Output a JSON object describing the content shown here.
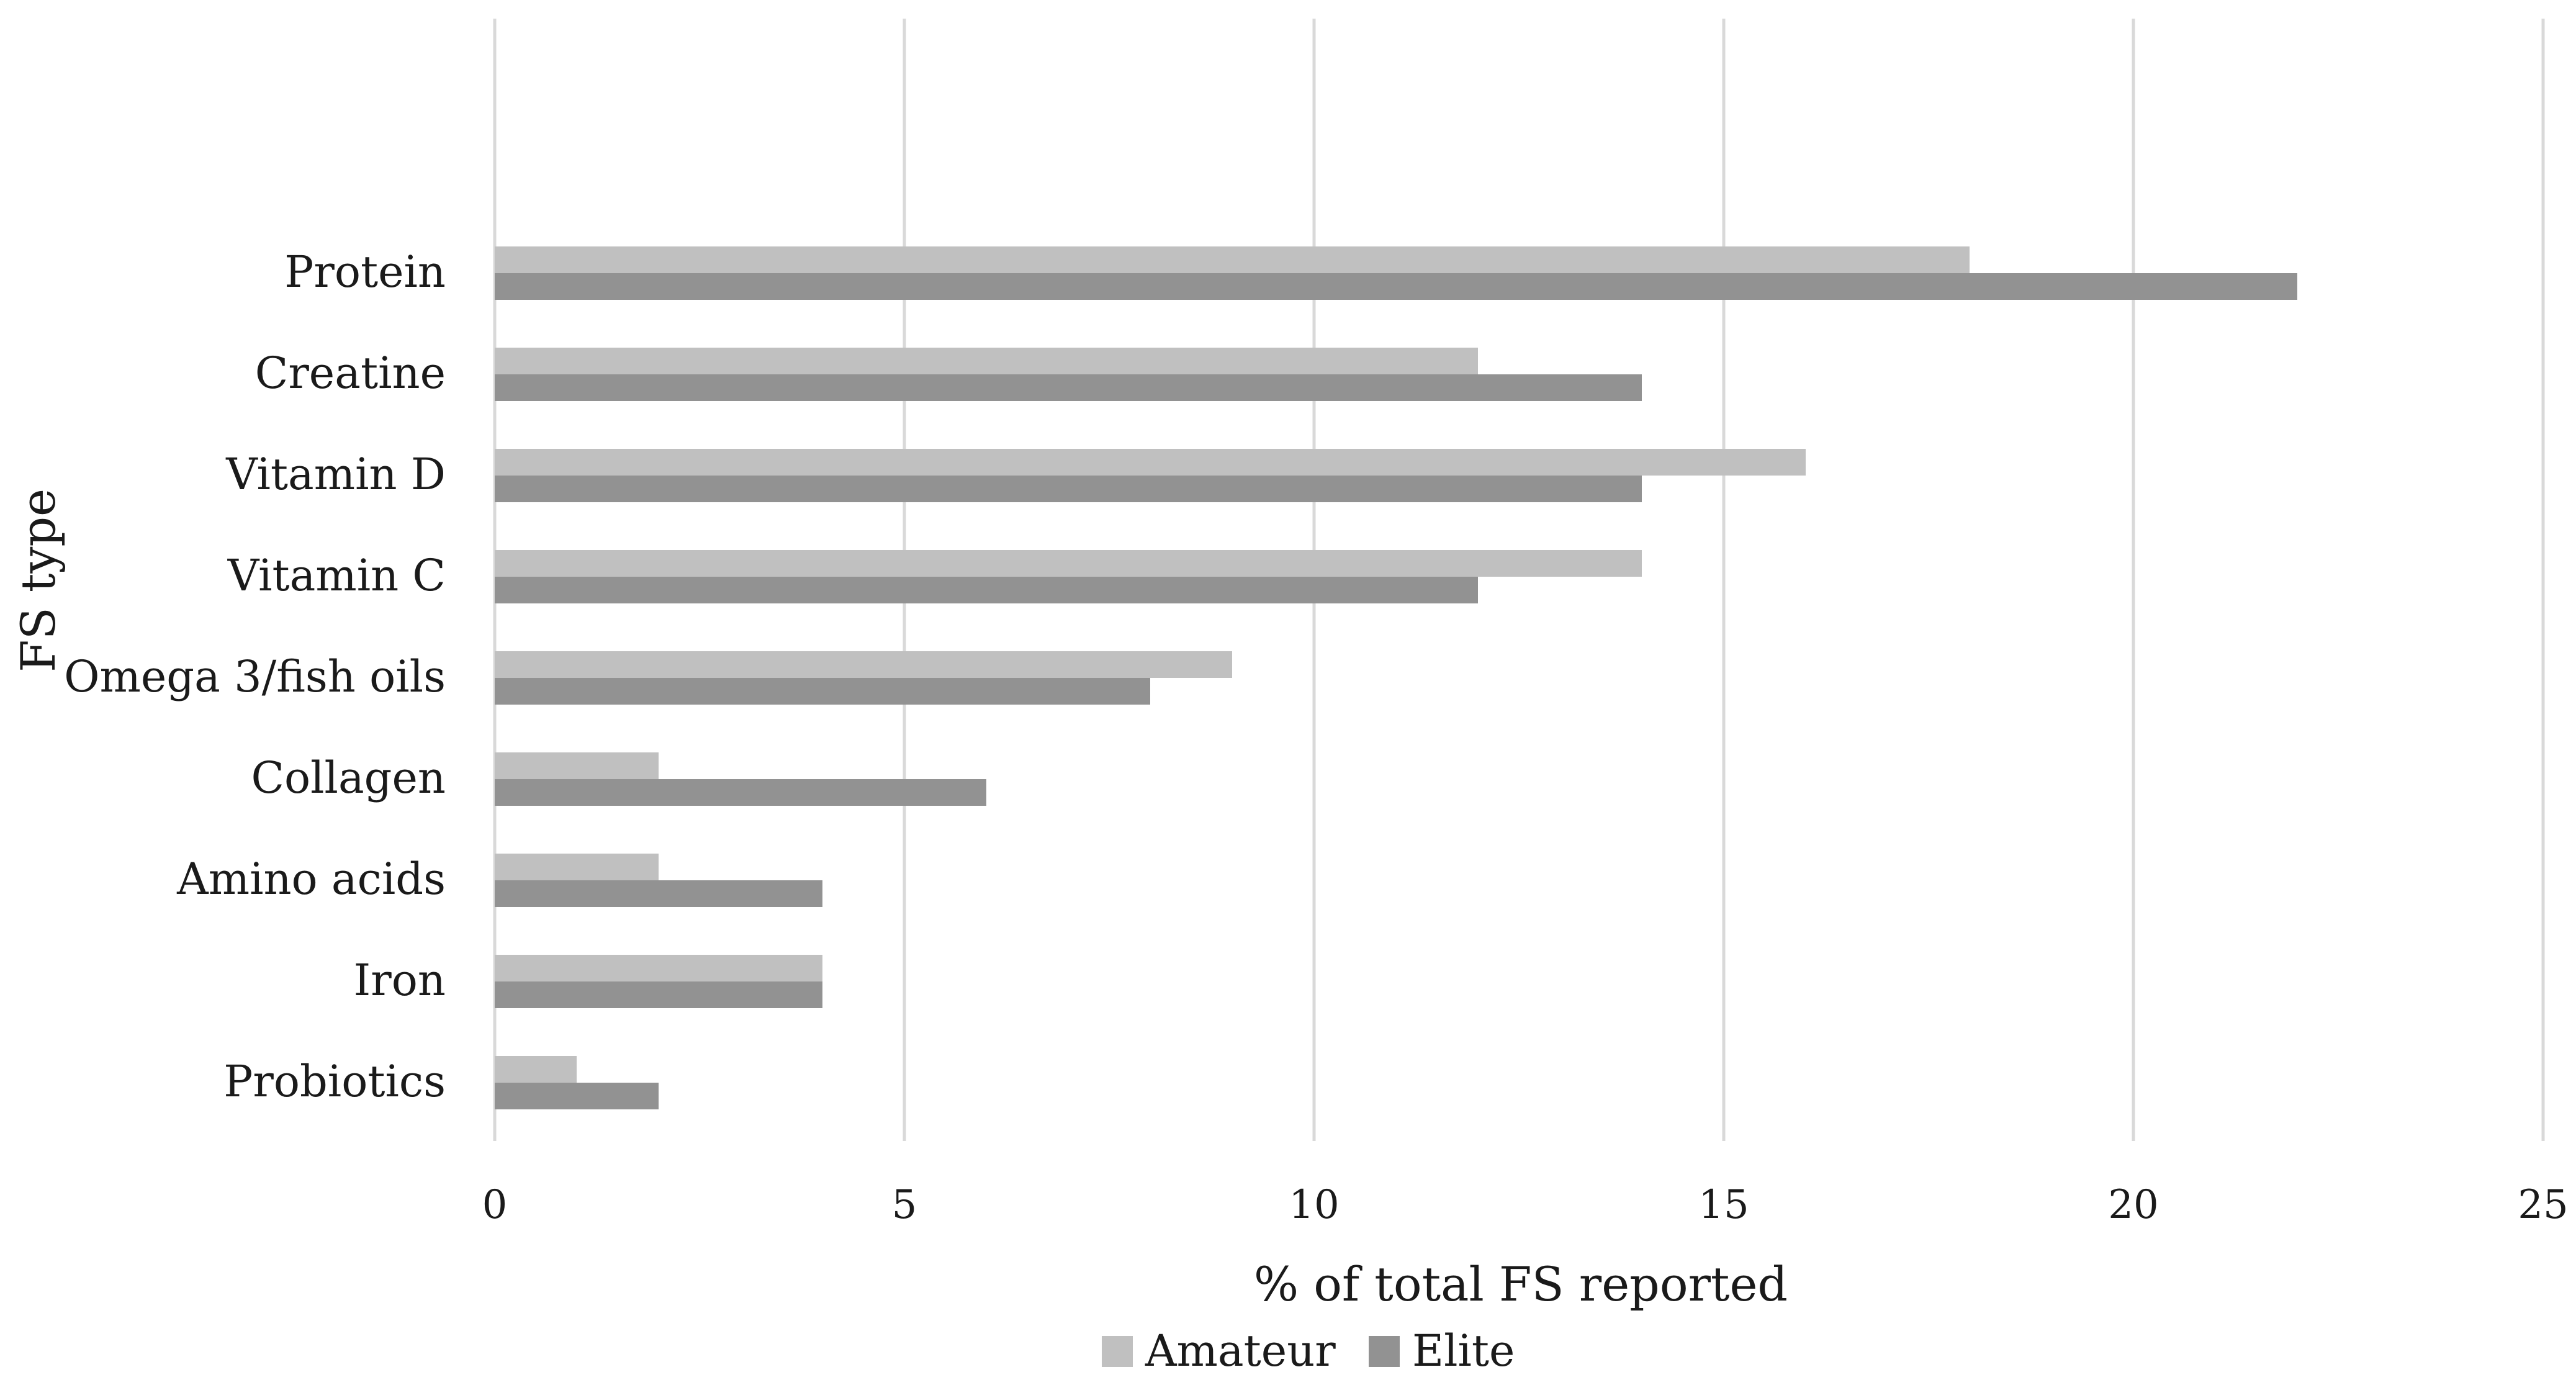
{
  "chart_data": {
    "type": "bar",
    "orientation": "horizontal",
    "categories": [
      "Protein",
      "Creatine",
      "Vitamin D",
      "Vitamin C",
      "Omega 3/fish oils",
      "Collagen",
      "Amino acids",
      "Iron",
      "Probiotics"
    ],
    "series": [
      {
        "name": "Amateur",
        "color": "#c0c0c0",
        "values": [
          18,
          12,
          16,
          14,
          9,
          2,
          2,
          4,
          1
        ]
      },
      {
        "name": "Elite",
        "color": "#929292",
        "values": [
          22,
          14,
          14,
          12,
          8,
          6,
          4,
          4,
          2
        ]
      }
    ],
    "xlabel": "% of total FS reported",
    "ylabel": "FS type",
    "xlim": [
      0,
      25
    ],
    "xticks": [
      "0",
      "5",
      "10",
      "15",
      "20",
      "25"
    ],
    "grid": "vertical",
    "gridColor": "#d9d9d9",
    "legend": "bottom"
  }
}
